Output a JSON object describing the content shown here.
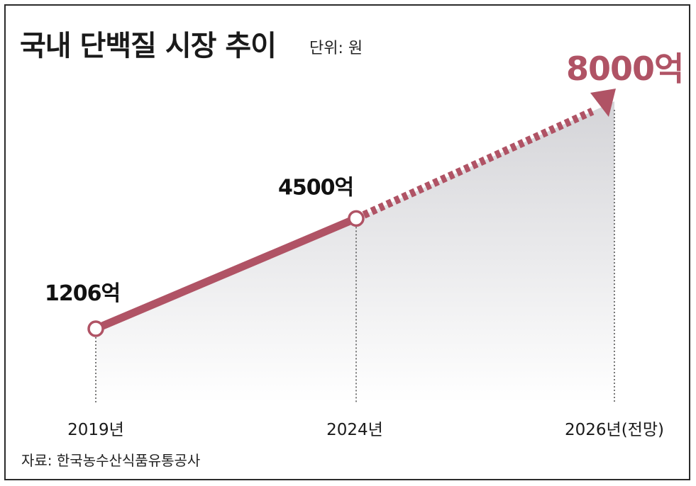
{
  "title": "국내 단백질 시장 추이",
  "unit": "단위: 원",
  "source": "자료: 한국농수산식품유통공사",
  "colors": {
    "line": "#b05365",
    "area_top": "#d4d4d8",
    "area_bottom": "#ffffff"
  },
  "chart_data": {
    "type": "line",
    "categories": [
      "2019년",
      "2024년",
      "2026년(전망)"
    ],
    "values": [
      1206,
      4500,
      8000
    ],
    "value_labels": [
      "1206억",
      "4500억",
      "8000억"
    ],
    "projected_from_index": 1,
    "title": "국내 단백질 시장 추이",
    "xlabel": "",
    "ylabel": "",
    "grid": false,
    "legend": "none"
  }
}
